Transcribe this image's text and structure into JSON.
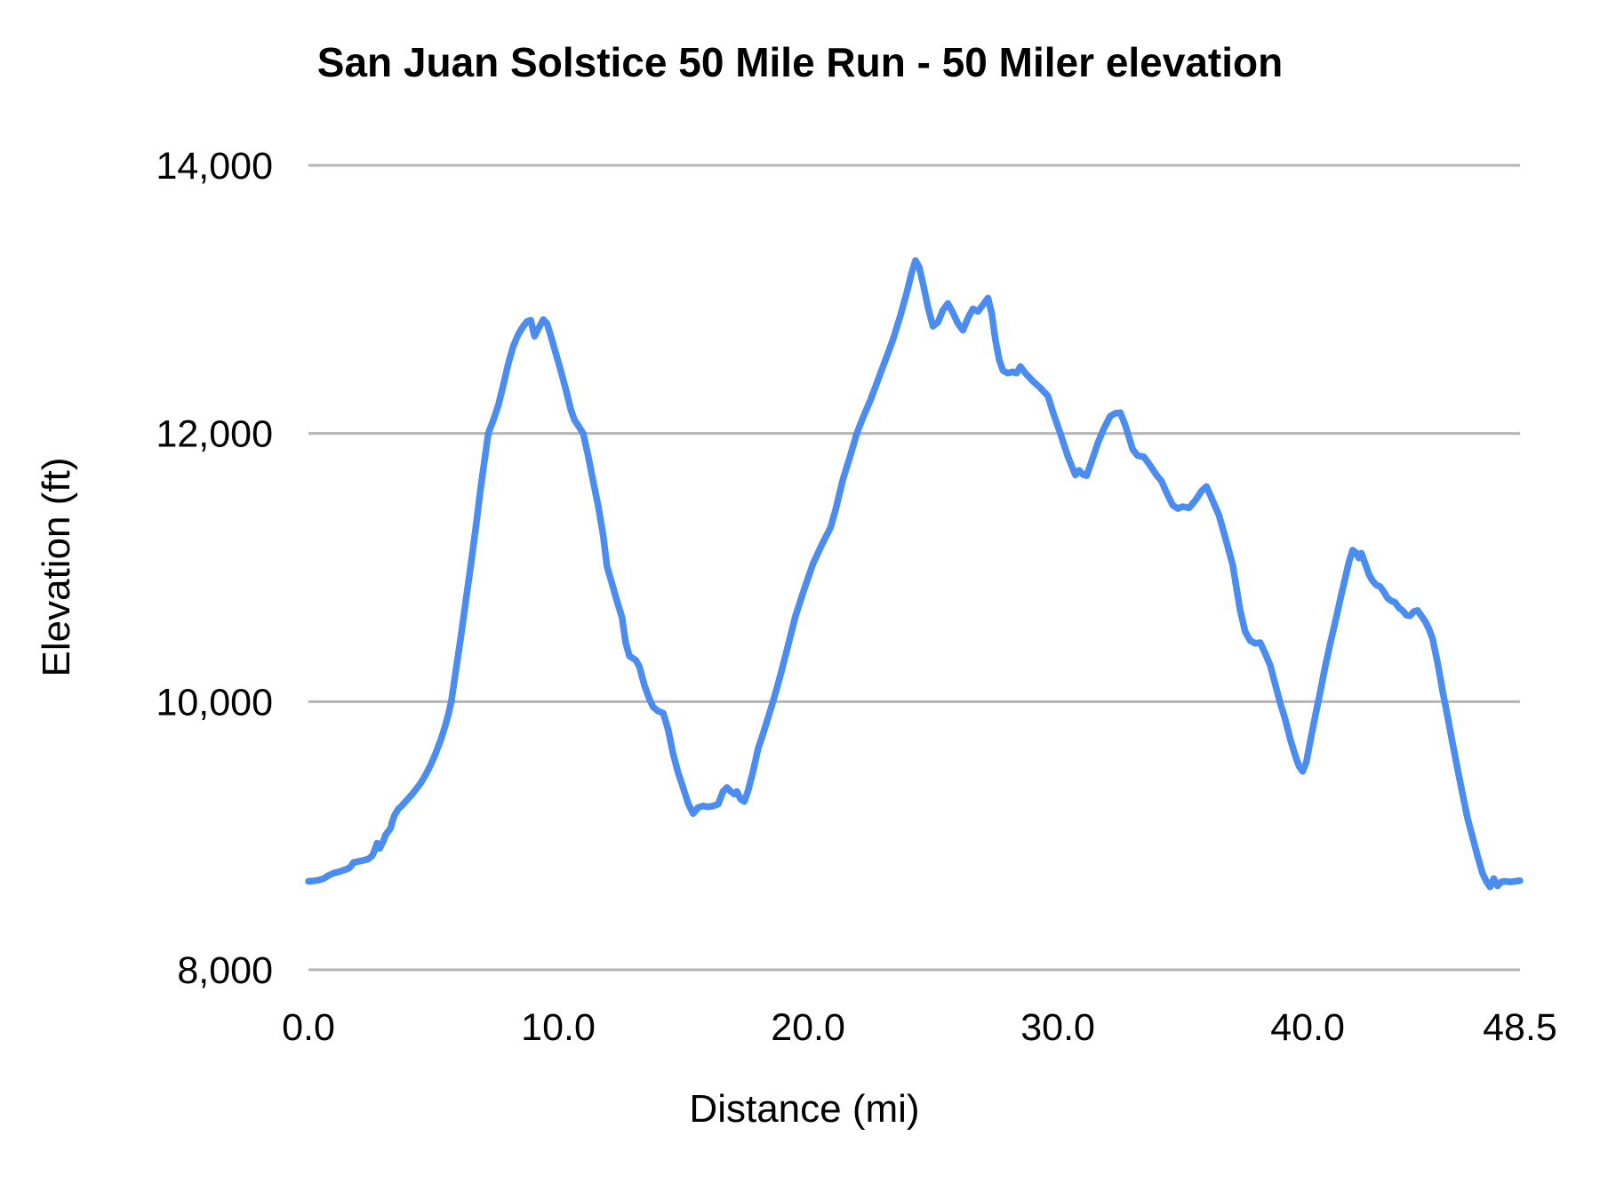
{
  "chart_data": {
    "type": "line",
    "title": "San Juan Solstice 50 Mile Run - 50 Miler elevation",
    "xlabel": "Distance (mi)",
    "ylabel": "Elevation (ft)",
    "xlim": [
      0,
      48.5
    ],
    "ylim": [
      8000,
      14000
    ],
    "x_ticks": [
      0,
      10,
      20,
      30,
      40,
      48.5
    ],
    "x_tick_labels": [
      "0.0",
      "10.0",
      "20.0",
      "30.0",
      "40.0",
      "48.5"
    ],
    "y_ticks": [
      8000,
      10000,
      12000,
      14000
    ],
    "y_tick_labels": [
      "8,000",
      "10,000",
      "12,000",
      "14,000"
    ],
    "grid": "horizontal",
    "legend": "none",
    "colors": {
      "line": "#4a8cf0",
      "gridline": "#b5b5b5",
      "text": "#000000",
      "background": "#ffffff"
    },
    "series": [
      {
        "name": "50 Miler elevation",
        "color": "#4a8cf0",
        "points": [
          [
            0,
            8660
          ],
          [
            0.2,
            8663
          ],
          [
            0.4,
            8668
          ],
          [
            0.6,
            8680
          ],
          [
            0.8,
            8703
          ],
          [
            1,
            8720
          ],
          [
            1.2,
            8730
          ],
          [
            1.4,
            8742
          ],
          [
            1.6,
            8755
          ],
          [
            1.7,
            8772
          ],
          [
            1.8,
            8800
          ],
          [
            2,
            8808
          ],
          [
            2.2,
            8816
          ],
          [
            2.4,
            8826
          ],
          [
            2.55,
            8850
          ],
          [
            2.65,
            8892
          ],
          [
            2.75,
            8945
          ],
          [
            2.85,
            8905
          ],
          [
            3,
            8960
          ],
          [
            3.1,
            9010
          ],
          [
            3.2,
            9032
          ],
          [
            3.3,
            9060
          ],
          [
            3.35,
            9100
          ],
          [
            3.45,
            9155
          ],
          [
            3.6,
            9200
          ],
          [
            3.75,
            9225
          ],
          [
            3.9,
            9258
          ],
          [
            4.1,
            9298
          ],
          [
            4.3,
            9344
          ],
          [
            4.5,
            9395
          ],
          [
            4.7,
            9458
          ],
          [
            4.9,
            9530
          ],
          [
            5.1,
            9618
          ],
          [
            5.3,
            9715
          ],
          [
            5.45,
            9805
          ],
          [
            5.6,
            9905
          ],
          [
            5.72,
            10000
          ],
          [
            5.9,
            10230
          ],
          [
            6.1,
            10480
          ],
          [
            6.3,
            10750
          ],
          [
            6.5,
            11020
          ],
          [
            6.7,
            11300
          ],
          [
            6.9,
            11600
          ],
          [
            7.05,
            11800
          ],
          [
            7.2,
            12000
          ],
          [
            7.4,
            12100
          ],
          [
            7.6,
            12210
          ],
          [
            7.8,
            12360
          ],
          [
            8,
            12520
          ],
          [
            8.2,
            12650
          ],
          [
            8.4,
            12740
          ],
          [
            8.6,
            12800
          ],
          [
            8.75,
            12835
          ],
          [
            8.9,
            12845
          ],
          [
            9.05,
            12725
          ],
          [
            9.2,
            12780
          ],
          [
            9.4,
            12850
          ],
          [
            9.55,
            12820
          ],
          [
            9.7,
            12730
          ],
          [
            9.9,
            12600
          ],
          [
            10.1,
            12470
          ],
          [
            10.3,
            12330
          ],
          [
            10.5,
            12180
          ],
          [
            10.65,
            12100
          ],
          [
            10.8,
            12060
          ],
          [
            11,
            12000
          ],
          [
            11.2,
            11830
          ],
          [
            11.4,
            11640
          ],
          [
            11.6,
            11460
          ],
          [
            11.8,
            11240
          ],
          [
            11.95,
            11010
          ],
          [
            12.15,
            10880
          ],
          [
            12.35,
            10750
          ],
          [
            12.55,
            10630
          ],
          [
            12.7,
            10440
          ],
          [
            12.85,
            10340
          ],
          [
            13.1,
            10310
          ],
          [
            13.25,
            10260
          ],
          [
            13.45,
            10120
          ],
          [
            13.65,
            10020
          ],
          [
            13.8,
            9960
          ],
          [
            14,
            9930
          ],
          [
            14.2,
            9915
          ],
          [
            14.4,
            9790
          ],
          [
            14.6,
            9610
          ],
          [
            14.8,
            9470
          ],
          [
            15,
            9360
          ],
          [
            15.2,
            9240
          ],
          [
            15.4,
            9165
          ],
          [
            15.6,
            9210
          ],
          [
            15.8,
            9222
          ],
          [
            16,
            9215
          ],
          [
            16.2,
            9222
          ],
          [
            16.4,
            9235
          ],
          [
            16.6,
            9330
          ],
          [
            16.75,
            9360
          ],
          [
            16.9,
            9332
          ],
          [
            17.05,
            9310
          ],
          [
            17.15,
            9330
          ],
          [
            17.3,
            9272
          ],
          [
            17.45,
            9255
          ],
          [
            17.6,
            9335
          ],
          [
            17.8,
            9480
          ],
          [
            18,
            9650
          ],
          [
            18.2,
            9760
          ],
          [
            18.4,
            9880
          ],
          [
            18.6,
            10000
          ],
          [
            18.9,
            10200
          ],
          [
            19.2,
            10420
          ],
          [
            19.5,
            10640
          ],
          [
            19.85,
            10840
          ],
          [
            20.2,
            11030
          ],
          [
            20.55,
            11170
          ],
          [
            20.9,
            11300
          ],
          [
            21.1,
            11430
          ],
          [
            21.4,
            11660
          ],
          [
            21.7,
            11840
          ],
          [
            21.95,
            12000
          ],
          [
            22.2,
            12120
          ],
          [
            22.5,
            12250
          ],
          [
            22.8,
            12400
          ],
          [
            23.1,
            12550
          ],
          [
            23.4,
            12700
          ],
          [
            23.7,
            12880
          ],
          [
            23.95,
            13050
          ],
          [
            24.15,
            13200
          ],
          [
            24.3,
            13290
          ],
          [
            24.45,
            13240
          ],
          [
            24.6,
            13120
          ],
          [
            24.8,
            12940
          ],
          [
            25,
            12800
          ],
          [
            25.2,
            12830
          ],
          [
            25.4,
            12920
          ],
          [
            25.6,
            12970
          ],
          [
            25.8,
            12900
          ],
          [
            26,
            12820
          ],
          [
            26.2,
            12770
          ],
          [
            26.4,
            12860
          ],
          [
            26.6,
            12930
          ],
          [
            26.8,
            12910
          ],
          [
            27,
            12960
          ],
          [
            27.2,
            13010
          ],
          [
            27.35,
            12900
          ],
          [
            27.5,
            12700
          ],
          [
            27.65,
            12550
          ],
          [
            27.8,
            12470
          ],
          [
            28,
            12450
          ],
          [
            28.2,
            12460
          ],
          [
            28.35,
            12450
          ],
          [
            28.5,
            12500
          ],
          [
            28.7,
            12450
          ],
          [
            29,
            12390
          ],
          [
            29.3,
            12340
          ],
          [
            29.6,
            12280
          ],
          [
            29.8,
            12160
          ],
          [
            30.1,
            12000
          ],
          [
            30.4,
            11830
          ],
          [
            30.7,
            11690
          ],
          [
            30.85,
            11725
          ],
          [
            31,
            11695
          ],
          [
            31.15,
            11685
          ],
          [
            31.35,
            11790
          ],
          [
            31.6,
            11930
          ],
          [
            31.85,
            12040
          ],
          [
            32.1,
            12130
          ],
          [
            32.3,
            12150
          ],
          [
            32.5,
            12155
          ],
          [
            32.7,
            12060
          ],
          [
            33,
            11880
          ],
          [
            33.2,
            11835
          ],
          [
            33.45,
            11825
          ],
          [
            33.7,
            11760
          ],
          [
            33.95,
            11690
          ],
          [
            34.15,
            11645
          ],
          [
            34.4,
            11540
          ],
          [
            34.6,
            11465
          ],
          [
            34.8,
            11440
          ],
          [
            35,
            11455
          ],
          [
            35.25,
            11445
          ],
          [
            35.5,
            11500
          ],
          [
            35.75,
            11570
          ],
          [
            35.95,
            11605
          ],
          [
            36.15,
            11520
          ],
          [
            36.45,
            11390
          ],
          [
            36.75,
            11190
          ],
          [
            37,
            11020
          ],
          [
            37.3,
            10680
          ],
          [
            37.5,
            10520
          ],
          [
            37.7,
            10455
          ],
          [
            37.9,
            10435
          ],
          [
            38.1,
            10440
          ],
          [
            38.3,
            10360
          ],
          [
            38.5,
            10270
          ],
          [
            38.7,
            10130
          ],
          [
            38.9,
            9990
          ],
          [
            39.1,
            9870
          ],
          [
            39.3,
            9720
          ],
          [
            39.5,
            9600
          ],
          [
            39.65,
            9520
          ],
          [
            39.8,
            9480
          ],
          [
            39.95,
            9550
          ],
          [
            40.1,
            9700
          ],
          [
            40.3,
            9890
          ],
          [
            40.5,
            10070
          ],
          [
            40.7,
            10260
          ],
          [
            40.9,
            10430
          ],
          [
            41.1,
            10590
          ],
          [
            41.3,
            10760
          ],
          [
            41.5,
            10920
          ],
          [
            41.65,
            11040
          ],
          [
            41.8,
            11130
          ],
          [
            41.95,
            11108
          ],
          [
            42.05,
            11070
          ],
          [
            42.15,
            11108
          ],
          [
            42.3,
            11030
          ],
          [
            42.45,
            10950
          ],
          [
            42.6,
            10900
          ],
          [
            42.75,
            10870
          ],
          [
            42.9,
            10858
          ],
          [
            43.05,
            10820
          ],
          [
            43.2,
            10772
          ],
          [
            43.35,
            10752
          ],
          [
            43.5,
            10740
          ],
          [
            43.65,
            10700
          ],
          [
            43.8,
            10680
          ],
          [
            43.95,
            10645
          ],
          [
            44.1,
            10640
          ],
          [
            44.25,
            10672
          ],
          [
            44.4,
            10680
          ],
          [
            44.55,
            10640
          ],
          [
            44.7,
            10600
          ],
          [
            44.85,
            10545
          ],
          [
            45,
            10470
          ],
          [
            45.2,
            10290
          ],
          [
            45.4,
            10080
          ],
          [
            45.6,
            9890
          ],
          [
            45.8,
            9690
          ],
          [
            46,
            9500
          ],
          [
            46.2,
            9310
          ],
          [
            46.4,
            9130
          ],
          [
            46.6,
            8990
          ],
          [
            46.8,
            8850
          ],
          [
            47,
            8720
          ],
          [
            47.15,
            8660
          ],
          [
            47.3,
            8618
          ],
          [
            47.45,
            8680
          ],
          [
            47.6,
            8625
          ],
          [
            47.75,
            8655
          ],
          [
            47.9,
            8660
          ],
          [
            48.1,
            8655
          ],
          [
            48.3,
            8660
          ],
          [
            48.5,
            8665
          ]
        ]
      }
    ]
  }
}
